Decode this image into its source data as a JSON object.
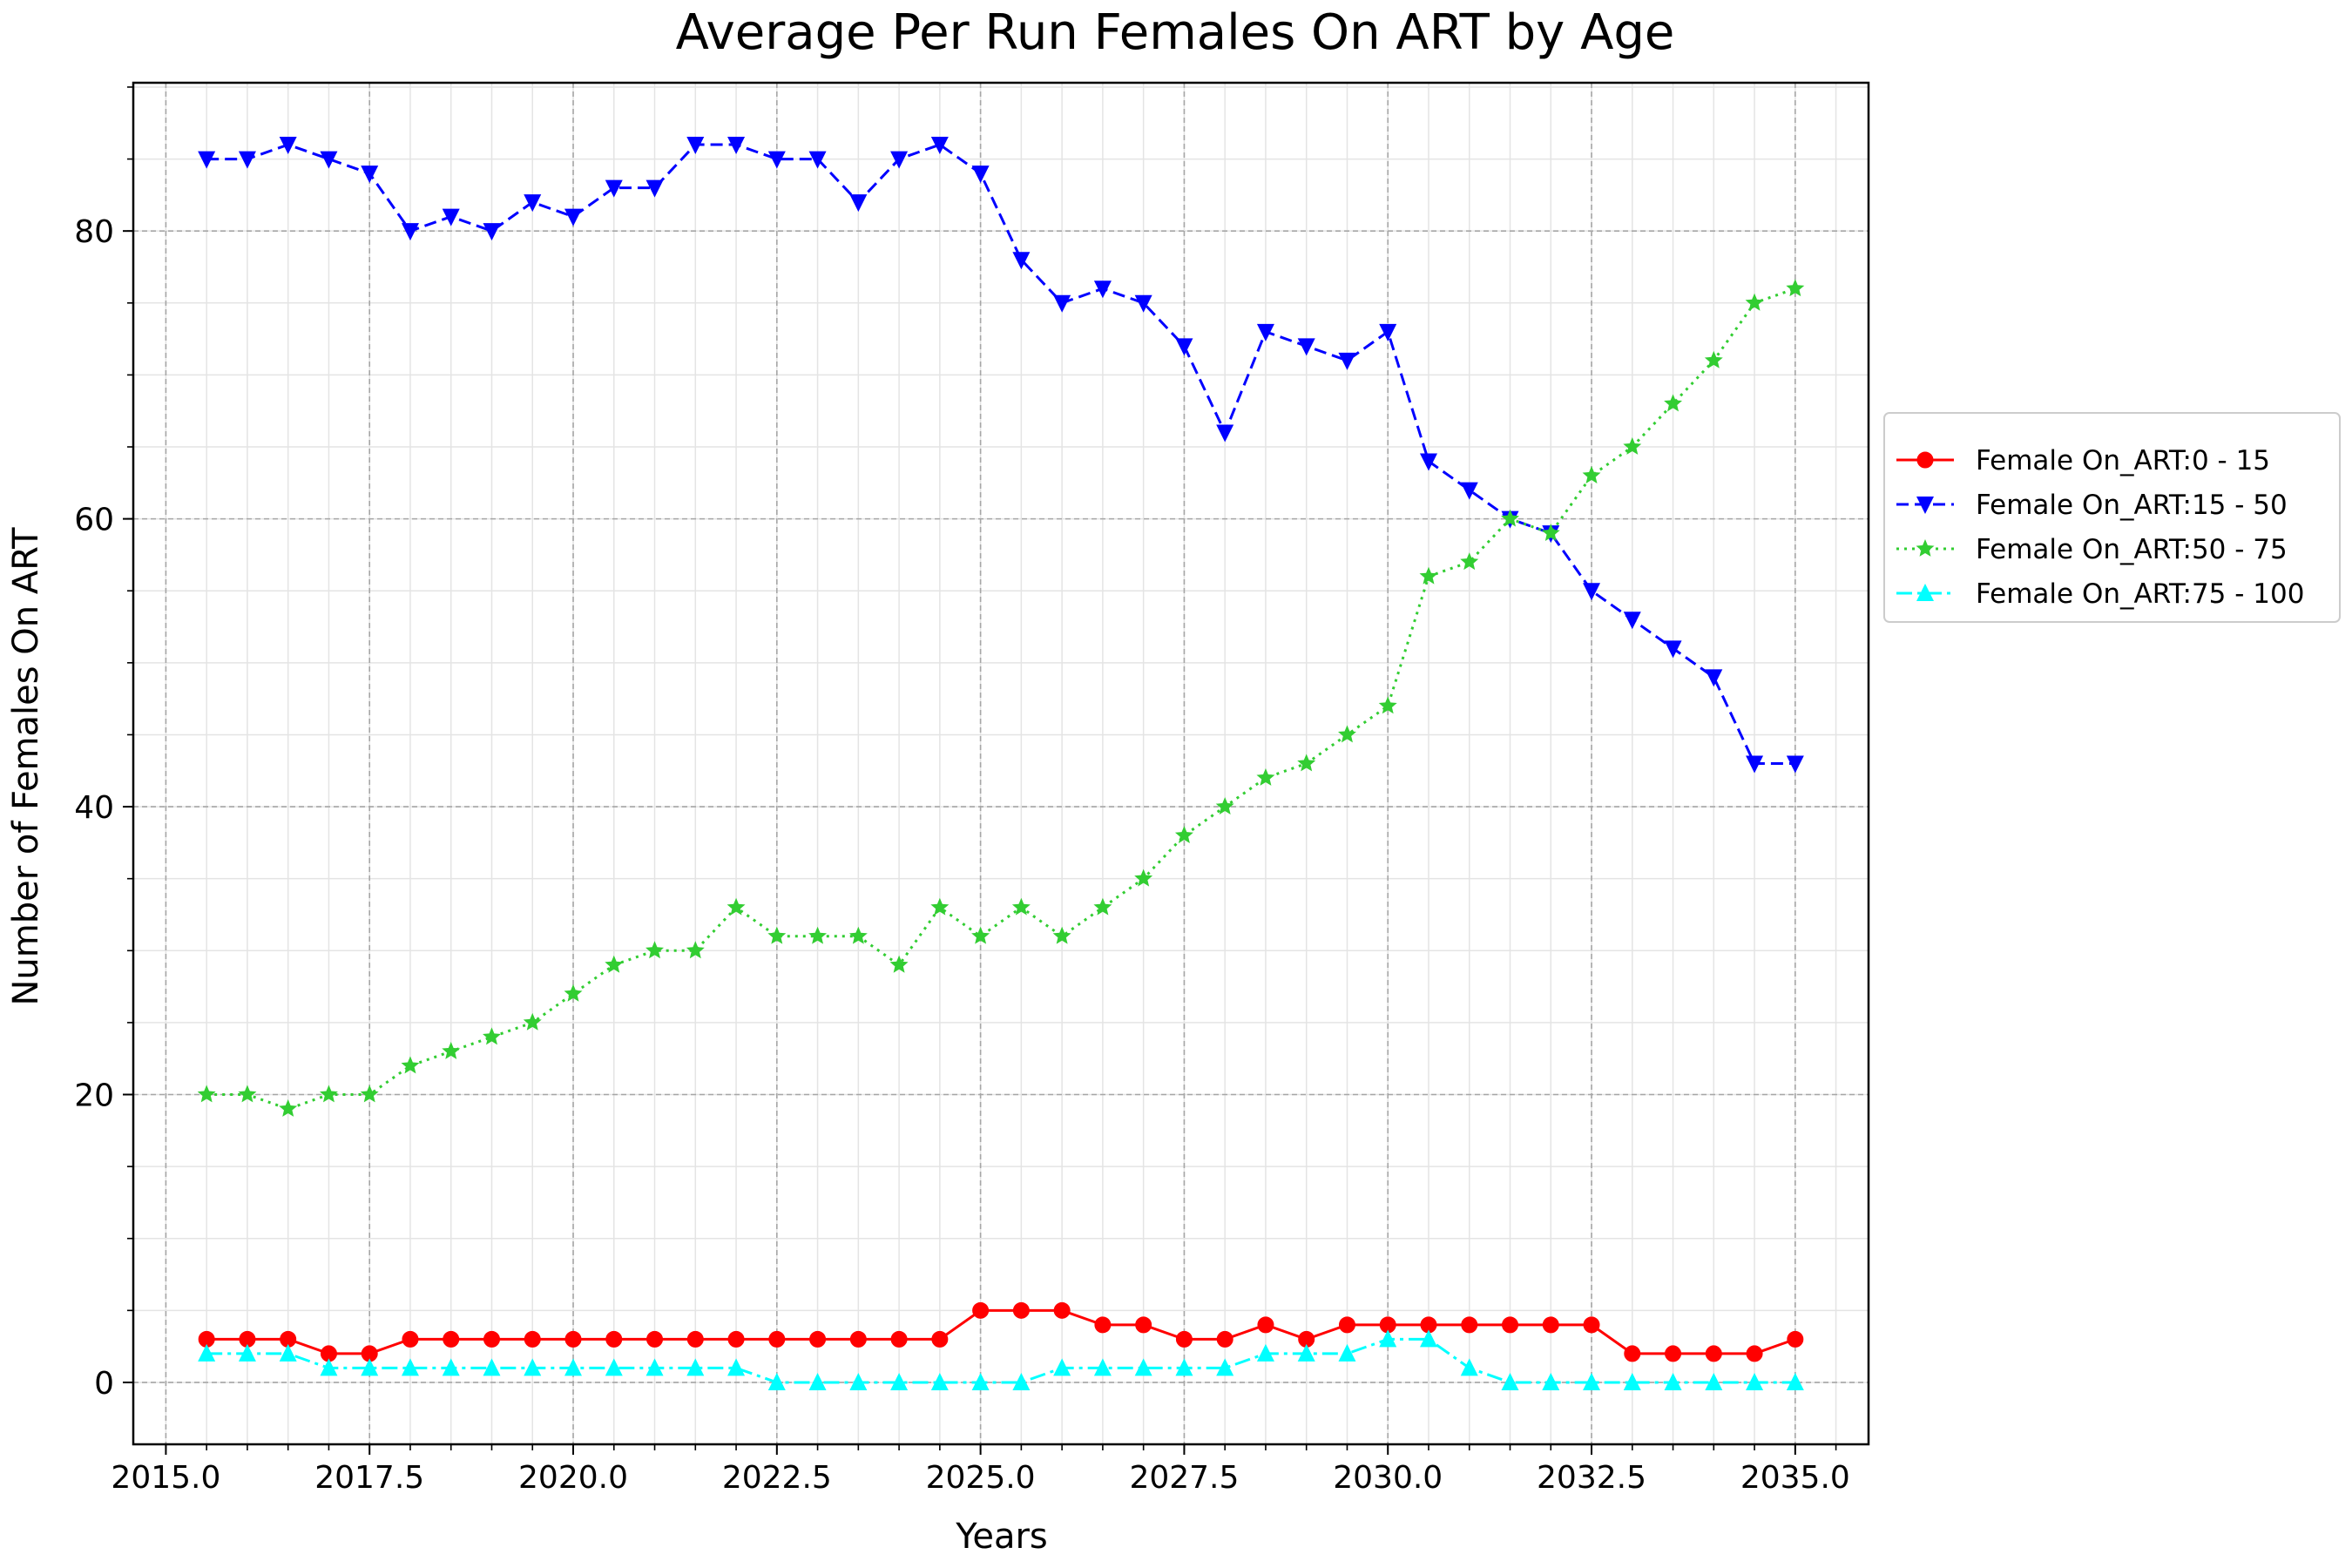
{
  "chart_data": {
    "type": "line",
    "title": "Average Per Run Females On ART by Age",
    "xlabel": "Years",
    "ylabel": "Number of Females On ART",
    "xlim": [
      2014.6,
      2035.9
    ],
    "ylim": [
      -4.3,
      90.3
    ],
    "xticks": [
      2015.0,
      2017.5,
      2020.0,
      2022.5,
      2025.0,
      2027.5,
      2030.0,
      2032.5,
      2035.0
    ],
    "xtick_labels": [
      "2015.0",
      "2017.5",
      "2020.0",
      "2022.5",
      "2025.0",
      "2027.5",
      "2030.0",
      "2032.5",
      "2035.0"
    ],
    "yticks": [
      0,
      20,
      40,
      60,
      80
    ],
    "ytick_labels": [
      "0",
      "20",
      "40",
      "60",
      "80"
    ],
    "grid": true,
    "legend_position": "right, outside plot",
    "x": [
      2015.5,
      2016.0,
      2016.5,
      2017.0,
      2017.5,
      2018.0,
      2018.5,
      2019.0,
      2019.5,
      2020.0,
      2020.5,
      2021.0,
      2021.5,
      2022.0,
      2022.5,
      2023.0,
      2023.5,
      2024.0,
      2024.5,
      2025.0,
      2025.5,
      2026.0,
      2026.5,
      2027.0,
      2027.5,
      2028.0,
      2028.5,
      2029.0,
      2029.5,
      2030.0,
      2030.5,
      2031.0,
      2031.5,
      2032.0,
      2032.5,
      2033.0,
      2033.5,
      2034.0,
      2034.5,
      2035.0
    ],
    "series": [
      {
        "name": "Female On_ART:0 - 15",
        "color": "#ff0000",
        "line_style": "solid",
        "marker": "circle",
        "values": [
          3,
          3,
          3,
          2,
          2,
          3,
          3,
          3,
          3,
          3,
          3,
          3,
          3,
          3,
          3,
          3,
          3,
          3,
          3,
          5,
          5,
          5,
          4,
          4,
          3,
          3,
          4,
          3,
          4,
          4,
          4,
          4,
          4,
          4,
          4,
          2,
          2,
          2,
          2,
          3
        ]
      },
      {
        "name": "Female On_ART:15 - 50",
        "color": "#0000ff",
        "line_style": "dashed",
        "marker": "triangle-down",
        "values": [
          85,
          85,
          86,
          85,
          84,
          80,
          81,
          80,
          82,
          81,
          83,
          83,
          86,
          86,
          85,
          85,
          82,
          85,
          86,
          84,
          78,
          75,
          76,
          75,
          72,
          66,
          73,
          72,
          71,
          73,
          64,
          62,
          60,
          59,
          55,
          53,
          51,
          49,
          43,
          43
        ]
      },
      {
        "name": "Female On_ART:50 - 75",
        "color": "#32cd32",
        "line_style": "dotted",
        "marker": "star",
        "values": [
          20,
          20,
          19,
          20,
          20,
          22,
          23,
          24,
          25,
          27,
          29,
          30,
          30,
          33,
          31,
          31,
          31,
          29,
          33,
          31,
          33,
          31,
          33,
          35,
          38,
          40,
          42,
          43,
          45,
          47,
          56,
          57,
          60,
          59,
          63,
          65,
          68,
          71,
          75,
          76
        ]
      },
      {
        "name": "Female On_ART:75 - 100",
        "color": "#00ffff",
        "line_style": "dashdot",
        "marker": "triangle-up",
        "values": [
          2,
          2,
          2,
          1,
          1,
          1,
          1,
          1,
          1,
          1,
          1,
          1,
          1,
          1,
          0,
          0,
          0,
          0,
          0,
          0,
          0,
          1,
          1,
          1,
          1,
          1,
          2,
          2,
          2,
          3,
          3,
          1,
          0,
          0,
          0,
          0,
          0,
          0,
          0,
          0
        ]
      }
    ]
  }
}
